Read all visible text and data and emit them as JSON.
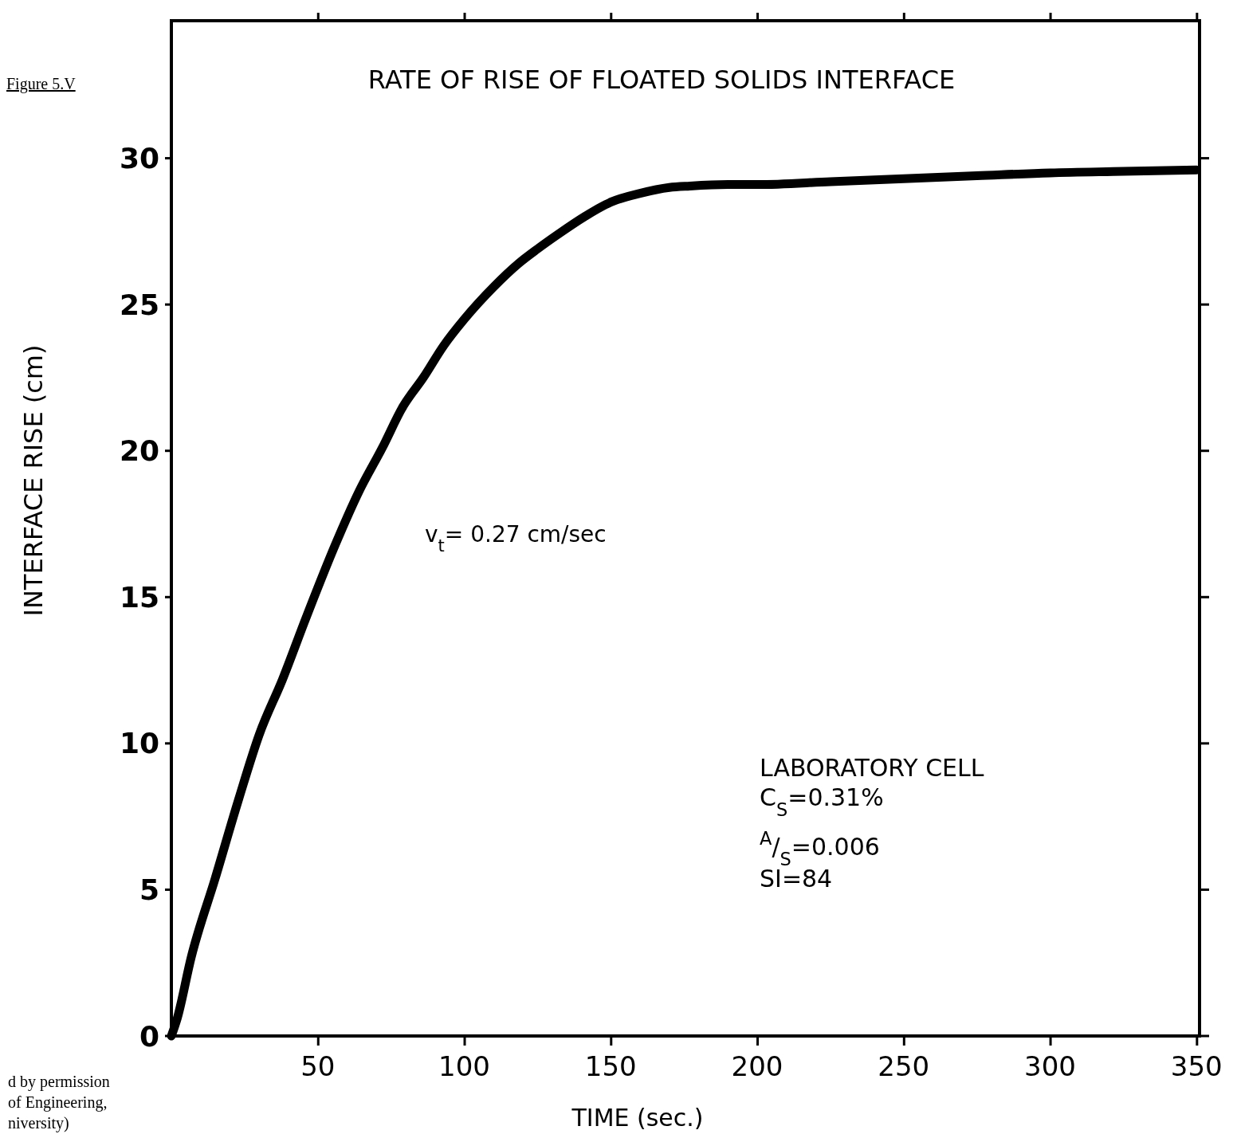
{
  "chart_data": {
    "type": "line",
    "title": "RATE OF RISE OF FLOATED SOLIDS INTERFACE",
    "xlabel": "TIME (sec.)",
    "ylabel": "INTERFACE RISE (cm)",
    "x": [
      0,
      2,
      6.8,
      15,
      23,
      30,
      38,
      46,
      56,
      64,
      72,
      79,
      86,
      93,
      100,
      110,
      118.5,
      125,
      132,
      141,
      150,
      160,
      170,
      177,
      190,
      200,
      225,
      250,
      275,
      300,
      325,
      350
    ],
    "series": [
      {
        "color": "#000000",
        "values": [
          0,
          0.6,
          2.7,
          5.4,
          8.1,
          10.3,
          12.2,
          14.3,
          16.8,
          18.6,
          20.1,
          21.5,
          22.5,
          23.6,
          24.5,
          25.6,
          26.4,
          26.9,
          27.4,
          28.0,
          28.5,
          28.8,
          29.0,
          29.05,
          29.1,
          29.1,
          29.2,
          29.3,
          29.4,
          29.5,
          29.55,
          29.6
        ]
      }
    ],
    "xlim": [
      0,
      351
    ],
    "ylim": [
      0,
      34.7
    ],
    "xticks": [
      50,
      100,
      150,
      200,
      250,
      300,
      350
    ],
    "yticks": [
      0,
      5,
      10,
      15,
      20,
      25,
      30
    ],
    "grid": false,
    "marker": "none",
    "line_style": "solid",
    "annotations": [
      "Figure 5.V",
      "v$_{t}$= 0.27 cm/sec",
      "LABORATORY CELL",
      "C$_{S}$=0.31%",
      "$^{A}$/$_{S}$=0.006",
      "SI=84",
      "d by permission",
      "of Engineering,",
      "niversity)"
    ]
  }
}
